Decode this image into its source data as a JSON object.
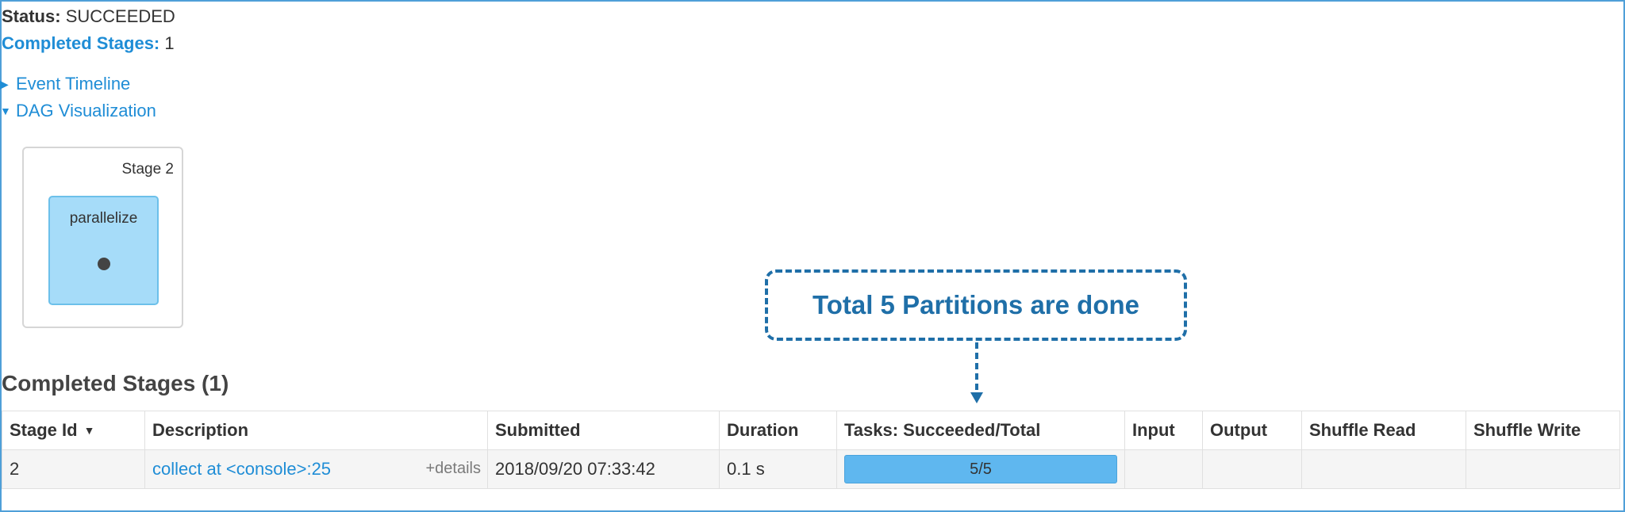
{
  "job_summary": {
    "status_label": "Status:",
    "status_value": "SUCCEEDED",
    "completed_label": "Completed Stages:",
    "completed_value": "1"
  },
  "toggles": {
    "event_timeline": "Event Timeline",
    "dag_visualization": "DAG Visualization"
  },
  "dag": {
    "stage_label": "Stage 2",
    "rdd_label": "parallelize"
  },
  "callout": {
    "text": "Total 5 Partitions are done"
  },
  "completed_stages": {
    "heading": "Completed Stages (1)",
    "columns": [
      "Stage Id",
      "Description",
      "Submitted",
      "Duration",
      "Tasks: Succeeded/Total",
      "Input",
      "Output",
      "Shuffle Read",
      "Shuffle Write"
    ],
    "sort_indicator": "▼",
    "rows": [
      {
        "stage_id": "2",
        "description": "collect at <console>:25",
        "details": "+details",
        "submitted": "2018/09/20 07:33:42",
        "duration": "0.1 s",
        "tasks": "5/5",
        "tasks_fraction": 1.0,
        "input": "",
        "output": "",
        "shuffle_read": "",
        "shuffle_write": ""
      }
    ]
  },
  "colors": {
    "link": "#1f8dd6",
    "progress": "#5fb7ef",
    "callout": "#1f6fa8",
    "rdd_fill": "#a6dcf9"
  }
}
